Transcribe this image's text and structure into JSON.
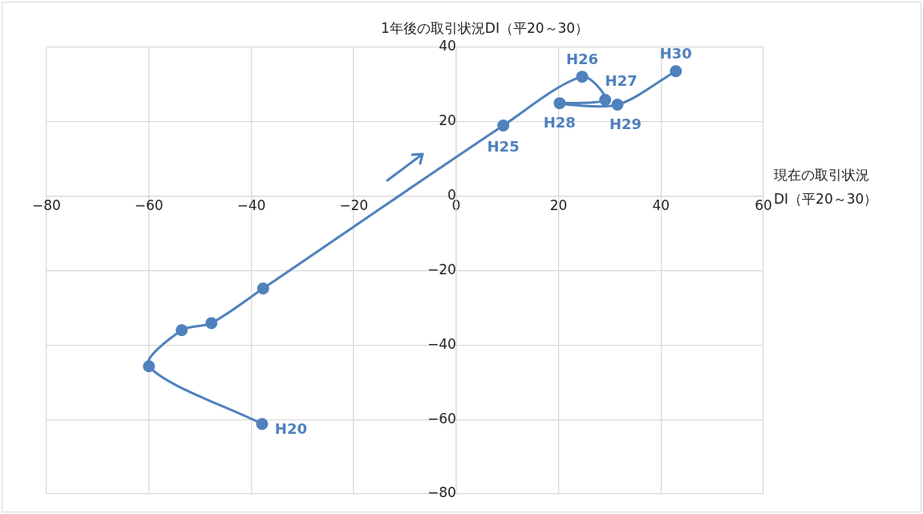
{
  "chart_data": {
    "type": "line",
    "xlabel": "現在の取引状況\nDI（平20～30）",
    "ylabel": "1年後の取引状況DI（平20～30）",
    "x": [
      -37.9,
      -60.0,
      -53.6,
      -47.8,
      -37.7,
      9.2,
      24.6,
      29.1,
      20.2,
      31.5,
      42.9
    ],
    "series": [
      {
        "color": "#4f81bd",
        "values": [
          -61.2,
          -45.7,
          -36.0,
          -34.1,
          -24.8,
          19.0,
          32.1,
          25.9,
          25.0,
          24.6,
          33.6
        ]
      }
    ],
    "xlim": [
      -80,
      60
    ],
    "ylim": [
      -80,
      40
    ],
    "xticks": [
      {
        "value": -80,
        "label": "−80"
      },
      {
        "value": -60,
        "label": "−60"
      },
      {
        "value": -40,
        "label": "−40"
      },
      {
        "value": -20,
        "label": "−20"
      },
      0,
      20,
      40,
      60
    ],
    "yticks": [
      {
        "value": -80,
        "label": "−80"
      },
      {
        "value": -60,
        "label": "−60"
      },
      {
        "value": -40,
        "label": "−40"
      },
      {
        "value": -20,
        "label": "−20"
      },
      0,
      20,
      40
    ],
    "annotations": [
      {
        "text": "H20",
        "x": -37.9,
        "y": -61.2
      },
      {
        "text": "H25",
        "x": 9.2,
        "y": 19.0
      },
      {
        "text": "H26",
        "x": 24.6,
        "y": 32.1
      },
      {
        "text": "H27",
        "x": 29.1,
        "y": 25.9
      },
      {
        "text": "H28",
        "x": 20.2,
        "y": 25.0
      },
      {
        "text": "H29",
        "x": 31.5,
        "y": 24.6
      },
      {
        "text": "H30",
        "x": 42.9,
        "y": 33.6
      }
    ],
    "grid": true,
    "marker": "circle",
    "line_style": "solid",
    "legend": false
  }
}
